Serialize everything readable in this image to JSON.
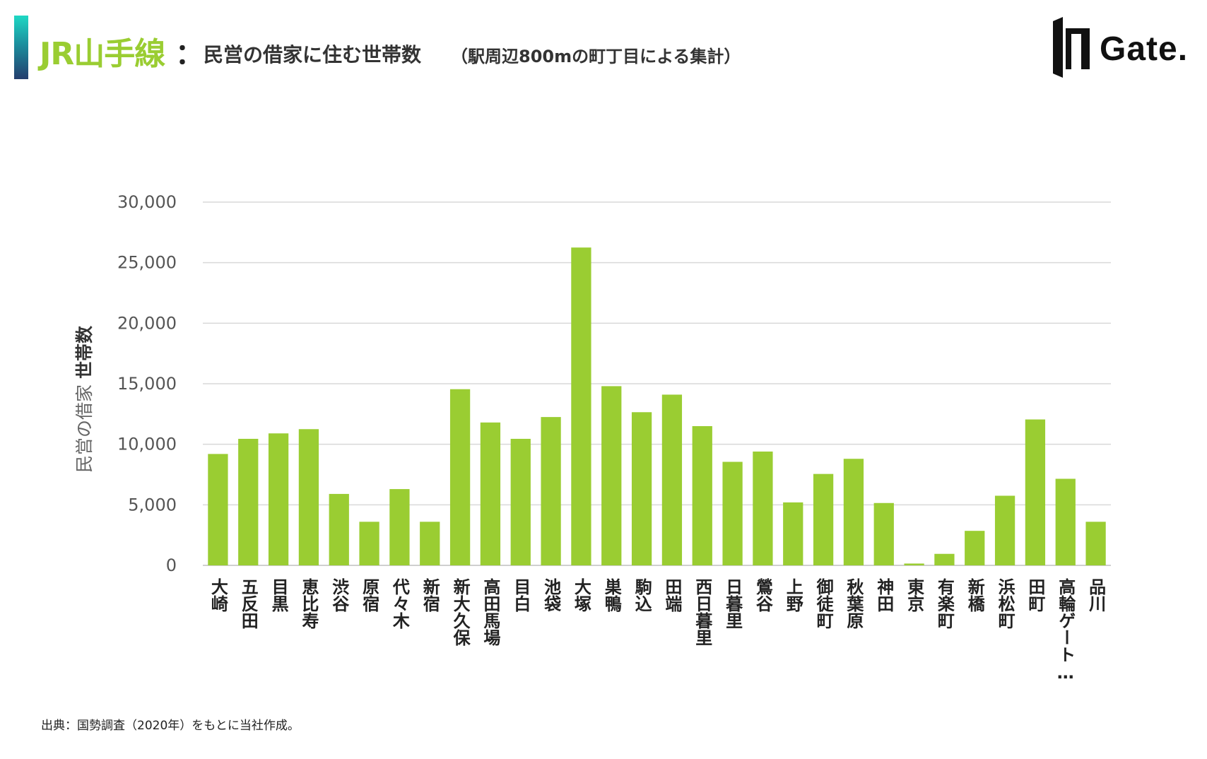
{
  "header": {
    "title": "JR山手線",
    "colon": "：",
    "subtitle": "民営の借家に住む世帯数",
    "note": "（駅周辺800mの町丁目による集計）"
  },
  "logo": {
    "text": "Gate."
  },
  "source": "出典：国勢調査（2020年）をもとに当社作成。",
  "colors": {
    "bar": "#9acd32",
    "grid": "#d9d9d9",
    "accent": "#9acd32"
  },
  "chart_data": {
    "type": "bar",
    "ylabel_light": "民営の借家",
    "ylabel_bold": "世帯数",
    "ylim": [
      0,
      30000
    ],
    "yticks": [
      0,
      5000,
      10000,
      15000,
      20000,
      25000,
      30000
    ],
    "ytick_labels": [
      "0",
      "5,000",
      "10,000",
      "15,000",
      "20,000",
      "25,000",
      "30,000"
    ],
    "grid": true,
    "categories": [
      "大崎",
      "五反田",
      "目黒",
      "恵比寿",
      "渋谷",
      "原宿",
      "代々木",
      "新宿",
      "新大久保",
      "高田馬場",
      "目白",
      "池袋",
      "大塚",
      "巣鴨",
      "駒込",
      "田端",
      "西日暮里",
      "日暮里",
      "鶯谷",
      "上野",
      "御徒町",
      "秋葉原",
      "神田",
      "東京",
      "有楽町",
      "新橋",
      "浜松町",
      "田町",
      "高輪ゲート…",
      "品川"
    ],
    "values": [
      9200,
      10450,
      10900,
      11250,
      5900,
      3600,
      6300,
      3600,
      14550,
      11800,
      10450,
      12250,
      26250,
      14800,
      12650,
      14100,
      11500,
      8550,
      9400,
      5200,
      7550,
      8800,
      5150,
      150,
      950,
      2850,
      5750,
      12050,
      7150,
      3600
    ]
  }
}
